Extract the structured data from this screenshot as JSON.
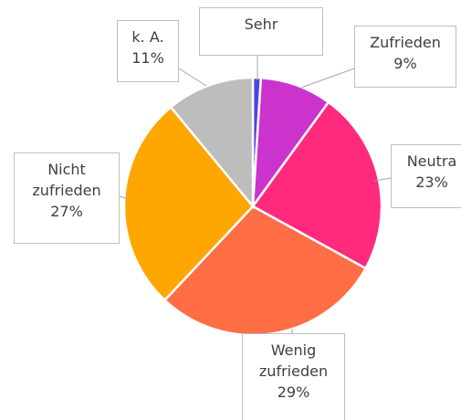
{
  "chart_data": {
    "type": "pie",
    "categories": [
      "Sehr",
      "Zufrieden",
      "Neutra",
      "Wenig zufrieden",
      "Nicht zufrieden",
      "k. A."
    ],
    "values": [
      1,
      9,
      23,
      29,
      27,
      11
    ],
    "value_labels": [
      null,
      "9%",
      "23%",
      "29%",
      "27%",
      "11%"
    ],
    "colors": [
      "#4b44e0",
      "#cc33cc",
      "#ff2a7b",
      "#ff6e45",
      "#ffa600",
      "#bdbdbd"
    ]
  }
}
